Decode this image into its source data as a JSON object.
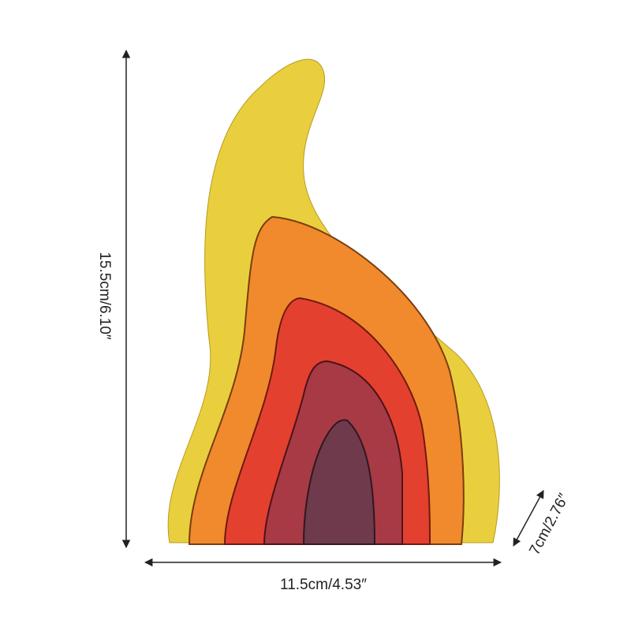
{
  "dimensions": {
    "height": "15.5cm/6.10″",
    "width": "11.5cm/4.53″",
    "depth": "7cm/2.76″"
  }
}
